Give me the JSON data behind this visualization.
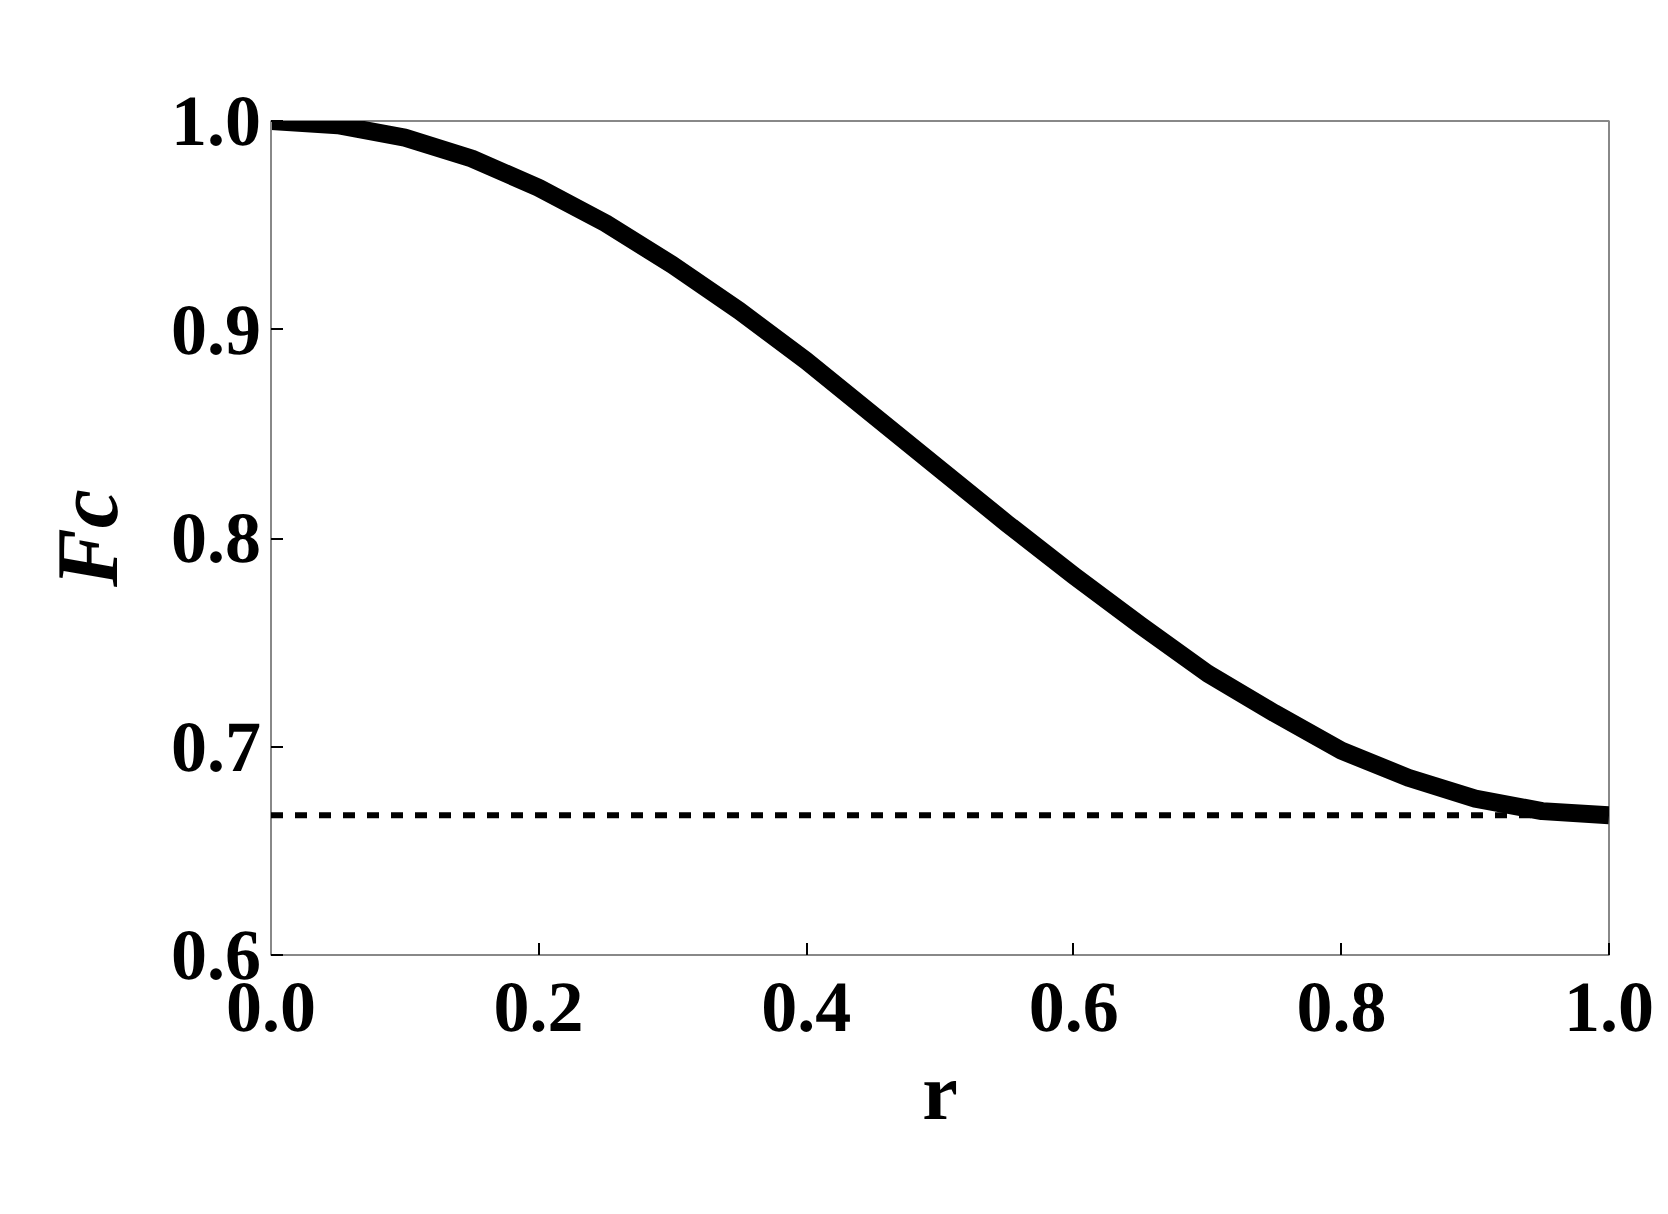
{
  "chart_data": {
    "type": "line",
    "xlabel": "r",
    "ylabel": "Fc",
    "x": [
      0,
      0.05,
      0.1,
      0.15,
      0.2,
      0.25,
      0.3,
      0.35,
      0.4,
      0.45,
      0.5,
      0.55,
      0.6,
      0.65,
      0.7,
      0.75,
      0.8,
      0.85,
      0.9,
      0.95,
      1.0
    ],
    "series": [
      {
        "color": "#000000",
        "values": [
          1.0,
          0.998,
          0.992,
          0.982,
          0.968,
          0.951,
          0.931,
          0.909,
          0.885,
          0.859,
          0.833,
          0.807,
          0.782,
          0.758,
          0.735,
          0.716,
          0.698,
          0.685,
          0.675,
          0.669,
          0.667
        ]
      }
    ],
    "xlim": [
      0,
      1
    ],
    "ylim": [
      0.6,
      1.0
    ],
    "xticks": [
      {
        "value": 0,
        "label": "0.0"
      },
      0.2,
      0.4,
      0.6,
      0.8,
      {
        "value": 1,
        "label": "1.0"
      }
    ],
    "yticks": [
      0.6,
      0.7,
      0.8,
      0.9,
      {
        "value": 1,
        "label": "1.0"
      }
    ],
    "ref_lines": [
      {
        "axis": "y",
        "value": 0.667,
        "line_style": "dashed",
        "color": "#000000"
      }
    ],
    "grid": false,
    "line_style": "solid",
    "marker": "none"
  }
}
